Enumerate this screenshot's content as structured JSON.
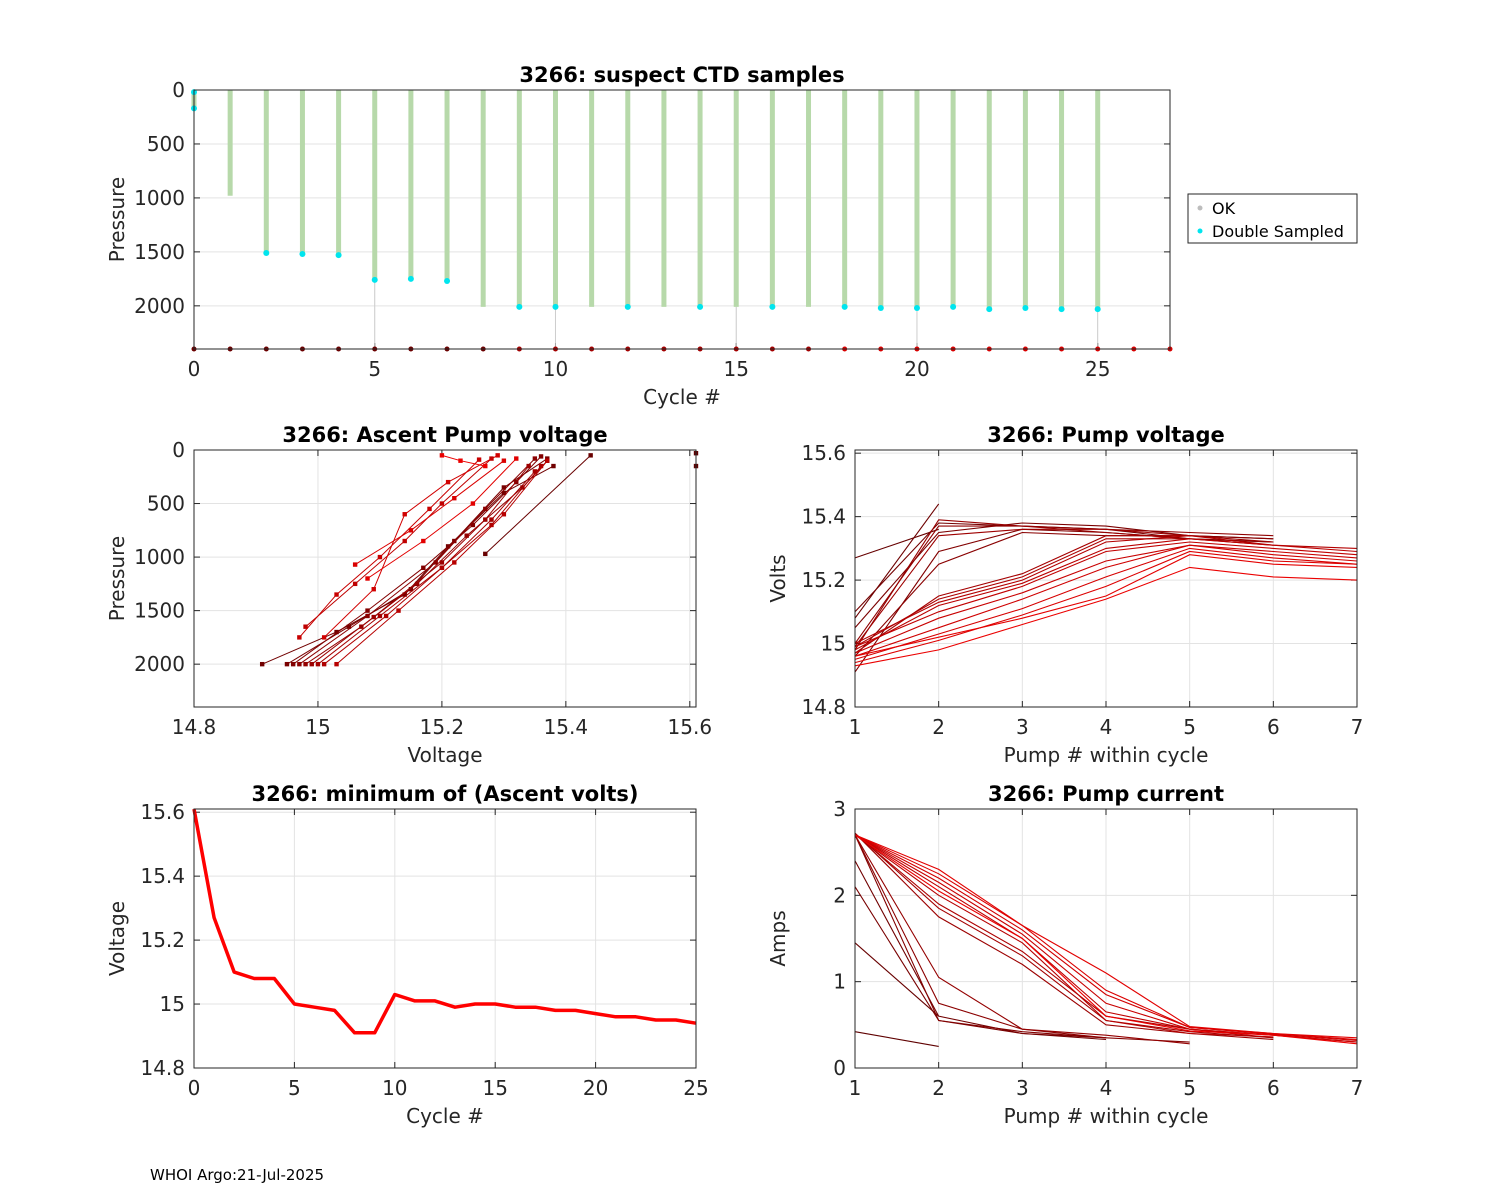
{
  "footer": "WHOI Argo:21-Jul-2025",
  "colors": {
    "ok": "#bdbdbd",
    "double": "#00e5ee",
    "green": "#b7d9aa",
    "red": "#ff0000",
    "darkred": "#8b0000"
  },
  "chart_data": [
    {
      "id": "ctd",
      "type": "scatter",
      "title": "3266: suspect CTD samples",
      "xlabel": "Cycle #",
      "ylabel": "Pressure",
      "xlim": [
        0,
        27
      ],
      "ylim": [
        0,
        2400
      ],
      "y_reversed": true,
      "xticks": [
        0,
        5,
        10,
        15,
        20,
        25
      ],
      "yticks": [
        0,
        500,
        1000,
        1500,
        2000
      ],
      "grid": true,
      "legend": {
        "position": "right",
        "entries": [
          "OK",
          "Double Sampled"
        ]
      },
      "cycles": [
        0,
        1,
        2,
        3,
        4,
        5,
        6,
        7,
        8,
        9,
        10,
        11,
        12,
        13,
        14,
        15,
        16,
        17,
        18,
        19,
        20,
        21,
        22,
        23,
        24,
        25
      ],
      "max_pressure": [
        170,
        980,
        1510,
        1520,
        1530,
        1760,
        1750,
        1770,
        2010,
        2010,
        2010,
        2010,
        2010,
        2010,
        2010,
        2010,
        2010,
        2010,
        2010,
        2020,
        2020,
        2010,
        2030,
        2020,
        2030,
        2030
      ],
      "double_sampled_pressure": [
        170,
        null,
        1510,
        1520,
        1530,
        1760,
        1750,
        1770,
        null,
        2010,
        2010,
        null,
        2010,
        null,
        2010,
        null,
        2010,
        null,
        2010,
        2020,
        2020,
        2010,
        2030,
        2020,
        2030,
        2030
      ],
      "bottom_markers_x": [
        0,
        1,
        2,
        3,
        4,
        5,
        6,
        7,
        8,
        9,
        10,
        11,
        12,
        13,
        14,
        15,
        16,
        17,
        18,
        19,
        20,
        21,
        22,
        23,
        24,
        25,
        26,
        27
      ],
      "thin_lines_x": [
        5,
        10,
        15,
        20,
        25
      ]
    },
    {
      "id": "ascent",
      "type": "line",
      "title": "3266: Ascent Pump voltage",
      "xlabel": "Voltage",
      "ylabel": "Pressure",
      "xlim": [
        14.8,
        15.61
      ],
      "ylim": [
        0,
        2400
      ],
      "y_reversed": true,
      "xticks": [
        14.8,
        15,
        15.2,
        15.4,
        15.6
      ],
      "xticklabels": [
        "14.8",
        "15",
        "15.2",
        "15.4",
        "15.6"
      ],
      "yticks": [
        0,
        500,
        1000,
        1500,
        2000
      ],
      "grid": true,
      "series": [
        {
          "x": [
            15.61,
            15.61
          ],
          "y": [
            30,
            150
          ]
        },
        {
          "x": [
            15.27,
            15.44
          ],
          "y": [
            970,
            50
          ]
        },
        {
          "x": [
            14.91,
            15.03,
            15.14,
            15.21,
            15.3,
            15.38
          ],
          "y": [
            2000,
            1700,
            1350,
            900,
            400,
            150
          ]
        },
        {
          "x": [
            14.95,
            15.05,
            15.15,
            15.22,
            15.3,
            15.37
          ],
          "y": [
            2000,
            1650,
            1300,
            850,
            350,
            80
          ]
        },
        {
          "x": [
            14.96,
            15.08,
            15.17,
            15.25,
            15.32,
            15.36
          ],
          "y": [
            2000,
            1500,
            1100,
            700,
            300,
            60
          ]
        },
        {
          "x": [
            14.97,
            15.08,
            15.19,
            15.27,
            15.35
          ],
          "y": [
            2000,
            1550,
            1050,
            550,
            80
          ]
        },
        {
          "x": [
            14.98,
            15.07,
            15.16,
            15.24,
            15.33,
            15.37
          ],
          "y": [
            2000,
            1650,
            1250,
            800,
            350,
            100
          ]
        },
        {
          "x": [
            14.99,
            15.09,
            15.2,
            15.27,
            15.34
          ],
          "y": [
            2000,
            1560,
            1050,
            650,
            150
          ]
        },
        {
          "x": [
            15,
            15.1,
            15.2,
            15.28,
            15.35
          ],
          "y": [
            2000,
            1550,
            1100,
            650,
            200
          ]
        },
        {
          "x": [
            15.01,
            15.11,
            15.2,
            15.28,
            15.36
          ],
          "y": [
            2000,
            1550,
            1100,
            700,
            150
          ]
        },
        {
          "x": [
            15.03,
            15.13,
            15.22,
            15.3,
            15.37
          ],
          "y": [
            2000,
            1500,
            1050,
            600,
            100
          ]
        },
        {
          "x": [
            14.98,
            15.06,
            15.14,
            15.2,
            15.28
          ],
          "y": [
            1650,
            1250,
            850,
            500,
            80
          ]
        },
        {
          "x": [
            14.97,
            15.03,
            15.1,
            15.18,
            15.26
          ],
          "y": [
            1750,
            1350,
            1000,
            550,
            90
          ]
        },
        {
          "x": [
            15.01,
            15.09,
            15.14,
            15.21,
            15.29
          ],
          "y": [
            1750,
            1300,
            600,
            300,
            50
          ]
        },
        {
          "x": [
            15.06,
            15.15,
            15.22,
            15.3
          ],
          "y": [
            1070,
            750,
            450,
            100
          ]
        },
        {
          "x": [
            15.08,
            15.17,
            15.25,
            15.32
          ],
          "y": [
            1200,
            850,
            500,
            80
          ]
        },
        {
          "x": [
            15.2,
            15.23,
            15.27
          ],
          "y": [
            50,
            100,
            150
          ]
        }
      ]
    },
    {
      "id": "pumpv",
      "type": "line",
      "title": "3266: Pump voltage",
      "xlabel": "Pump # within cycle",
      "ylabel": "Volts",
      "xlim": [
        1,
        7
      ],
      "ylim": [
        14.8,
        15.61
      ],
      "xticks": [
        1,
        2,
        3,
        4,
        5,
        6,
        7
      ],
      "yticks": [
        14.8,
        15,
        15.2,
        15.4,
        15.6
      ],
      "yticklabels": [
        "14.8",
        "15",
        "15.2",
        "15.4",
        "15.6"
      ],
      "grid": true,
      "series": [
        {
          "x": [
            1,
            2
          ],
          "y": [
            15.61,
            15.61
          ]
        },
        {
          "x": [
            1,
            2
          ],
          "y": [
            15.27,
            15.36
          ]
        },
        {
          "x": [
            1,
            2
          ],
          "y": [
            15.08,
            15.44
          ]
        },
        {
          "x": [
            1,
            2,
            3,
            4,
            5,
            6
          ],
          "y": [
            15.1,
            15.38,
            15.37,
            15.36,
            15.33,
            15.32
          ]
        },
        {
          "x": [
            1,
            2,
            3,
            4,
            5,
            6
          ],
          "y": [
            15.05,
            15.35,
            15.38,
            15.37,
            15.34,
            15.33
          ]
        },
        {
          "x": [
            1,
            2,
            3,
            4,
            5,
            6
          ],
          "y": [
            14.91,
            15.29,
            15.36,
            15.35,
            15.33,
            15.32
          ]
        },
        {
          "x": [
            1,
            2,
            3,
            4,
            5,
            6
          ],
          "y": [
            14.96,
            15.25,
            15.35,
            15.34,
            15.34,
            15.33
          ]
        },
        {
          "x": [
            1,
            2,
            3,
            4,
            5,
            6
          ],
          "y": [
            15,
            15.37,
            15.37,
            15.36,
            15.35,
            15.34
          ]
        },
        {
          "x": [
            1,
            2,
            3,
            4,
            5,
            6
          ],
          "y": [
            14.98,
            15.39,
            15.37,
            15.35,
            15.33,
            15.31
          ]
        },
        {
          "x": [
            1,
            2,
            3,
            4,
            5,
            6
          ],
          "y": [
            14.99,
            15.34,
            15.36,
            15.36,
            15.34,
            15.32
          ]
        },
        {
          "x": [
            1,
            2,
            3,
            4,
            5
          ],
          "y": [
            14.97,
            15.15,
            15.22,
            15.34,
            15.34
          ]
        },
        {
          "x": [
            1,
            2,
            3,
            4,
            5
          ],
          "y": [
            14.99,
            15.14,
            15.21,
            15.33,
            15.33
          ]
        },
        {
          "x": [
            1,
            2,
            3,
            4,
            5,
            6,
            7
          ],
          "y": [
            15,
            15.13,
            15.2,
            15.32,
            15.34,
            15.31,
            15.3
          ]
        },
        {
          "x": [
            1,
            2,
            3,
            4,
            5,
            6,
            7
          ],
          "y": [
            14.98,
            15.12,
            15.19,
            15.3,
            15.33,
            15.31,
            15.29
          ]
        },
        {
          "x": [
            1,
            2,
            3,
            4,
            5,
            6,
            7
          ],
          "y": [
            14.99,
            15.1,
            15.18,
            15.29,
            15.32,
            15.3,
            15.28
          ]
        },
        {
          "x": [
            1,
            2,
            3,
            4,
            5,
            6,
            7
          ],
          "y": [
            14.97,
            15.08,
            15.16,
            15.26,
            15.31,
            15.29,
            15.27
          ]
        },
        {
          "x": [
            1,
            2,
            3,
            4,
            5,
            6,
            7
          ],
          "y": [
            14.96,
            15.05,
            15.14,
            15.24,
            15.31,
            15.28,
            15.26
          ]
        },
        {
          "x": [
            1,
            2,
            3,
            4,
            5,
            6,
            7
          ],
          "y": [
            14.95,
            15.03,
            15.11,
            15.21,
            15.3,
            15.27,
            15.25
          ]
        },
        {
          "x": [
            1,
            2,
            3,
            4,
            5,
            6,
            7
          ],
          "y": [
            14.94,
            15.01,
            15.09,
            15.18,
            15.29,
            15.26,
            15.25
          ]
        },
        {
          "x": [
            1,
            2,
            3,
            4,
            5,
            6,
            7
          ],
          "y": [
            14.96,
            15.02,
            15.08,
            15.15,
            15.28,
            15.25,
            15.24
          ]
        },
        {
          "x": [
            1,
            2,
            3,
            4,
            5,
            6,
            7
          ],
          "y": [
            14.93,
            14.98,
            15.06,
            15.14,
            15.24,
            15.21,
            15.2
          ]
        }
      ]
    },
    {
      "id": "minv",
      "type": "line",
      "title": "3266: minimum of (Ascent volts)",
      "xlabel": "Cycle #",
      "ylabel": "Voltage",
      "xlim": [
        0,
        25
      ],
      "ylim": [
        14.8,
        15.61
      ],
      "xticks": [
        0,
        5,
        10,
        15,
        20,
        25
      ],
      "yticks": [
        14.8,
        15,
        15.2,
        15.4,
        15.6
      ],
      "yticklabels": [
        "14.8",
        "15",
        "15.2",
        "15.4",
        "15.6"
      ],
      "grid": true,
      "x": [
        0,
        1,
        2,
        3,
        4,
        5,
        6,
        7,
        8,
        9,
        10,
        11,
        12,
        13,
        14,
        15,
        16,
        17,
        18,
        19,
        20,
        21,
        22,
        23,
        24,
        25
      ],
      "values": [
        15.61,
        15.27,
        15.1,
        15.08,
        15.08,
        15,
        14.99,
        14.98,
        14.91,
        14.91,
        15.03,
        15.01,
        15.01,
        14.99,
        15,
        15,
        14.99,
        14.99,
        14.98,
        14.98,
        14.97,
        14.96,
        14.96,
        14.95,
        14.95,
        14.94
      ]
    },
    {
      "id": "pumpi",
      "type": "line",
      "title": "3266: Pump current",
      "xlabel": "Pump # within cycle",
      "ylabel": "Amps",
      "xlim": [
        1,
        7
      ],
      "ylim": [
        0,
        3
      ],
      "xticks": [
        1,
        2,
        3,
        4,
        5,
        6,
        7
      ],
      "yticks": [
        0,
        1,
        2,
        3
      ],
      "grid": true,
      "series": [
        {
          "x": [
            1,
            2
          ],
          "y": [
            0.42,
            0.25
          ]
        },
        {
          "x": [
            1,
            2
          ],
          "y": [
            1.45,
            0.6
          ]
        },
        {
          "x": [
            1,
            2,
            3,
            4
          ],
          "y": [
            2.4,
            0.6,
            0.4,
            0.33
          ]
        },
        {
          "x": [
            1,
            2,
            3,
            4
          ],
          "y": [
            2.1,
            0.55,
            0.4,
            0.35
          ]
        },
        {
          "x": [
            1,
            2,
            3,
            4,
            5
          ],
          "y": [
            2.7,
            0.55,
            0.42,
            0.35,
            0.3
          ]
        },
        {
          "x": [
            1,
            2,
            3,
            4
          ],
          "y": [
            2.7,
            0.75,
            0.45,
            0.35
          ]
        },
        {
          "x": [
            1,
            2,
            3,
            4,
            5
          ],
          "y": [
            2.7,
            1.05,
            0.45,
            0.38,
            0.28
          ]
        },
        {
          "x": [
            1,
            2,
            3,
            4,
            5,
            6
          ],
          "y": [
            2.72,
            1.75,
            1.2,
            0.5,
            0.4,
            0.33
          ]
        },
        {
          "x": [
            1,
            2,
            3,
            4,
            5,
            6
          ],
          "y": [
            2.72,
            1.85,
            1.3,
            0.55,
            0.42,
            0.35
          ]
        },
        {
          "x": [
            1,
            2,
            3,
            4,
            5,
            6
          ],
          "y": [
            2.71,
            1.9,
            1.35,
            0.6,
            0.45,
            0.35
          ]
        },
        {
          "x": [
            1,
            2,
            3,
            4,
            5,
            6
          ],
          "y": [
            2.7,
            2,
            1.45,
            0.55,
            0.4,
            0.36
          ]
        },
        {
          "x": [
            1,
            2,
            3,
            4,
            5,
            6,
            7
          ],
          "y": [
            2.7,
            2.1,
            1.5,
            0.65,
            0.45,
            0.38,
            0.3
          ]
        },
        {
          "x": [
            1,
            2,
            3,
            4,
            5,
            6,
            7
          ],
          "y": [
            2.7,
            2.15,
            1.55,
            0.75,
            0.45,
            0.38,
            0.3
          ]
        },
        {
          "x": [
            1,
            2,
            3,
            4,
            5,
            6,
            7
          ],
          "y": [
            2.7,
            2.2,
            1.6,
            0.85,
            0.47,
            0.39,
            0.32
          ]
        },
        {
          "x": [
            1,
            2,
            3,
            4,
            5,
            6,
            7
          ],
          "y": [
            2.7,
            2.25,
            1.65,
            0.9,
            0.47,
            0.4,
            0.33
          ]
        },
        {
          "x": [
            1,
            2,
            3,
            4,
            5,
            6,
            7
          ],
          "y": [
            2.7,
            2.3,
            1.65,
            1.1,
            0.48,
            0.4,
            0.35
          ]
        },
        {
          "x": [
            1,
            2,
            3,
            4,
            5,
            6,
            7
          ],
          "y": [
            2.7,
            2.05,
            1.5,
            0.6,
            0.43,
            0.38,
            0.28
          ]
        }
      ]
    }
  ]
}
